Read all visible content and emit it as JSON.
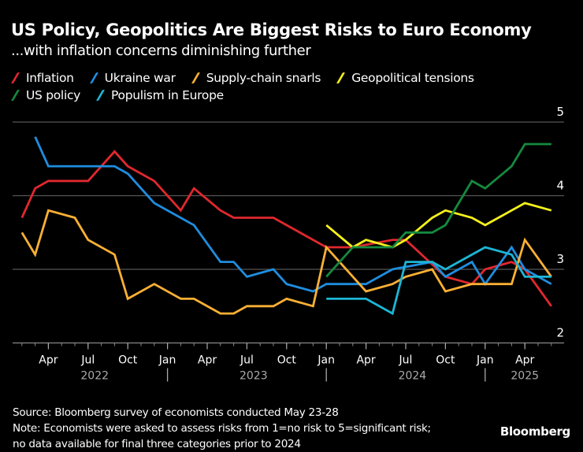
{
  "header": {
    "title": "US Policy, Geopolitics Are Biggest Risks to Euro Economy",
    "subtitle": "...with inflation concerns diminishing further"
  },
  "legend": [
    {
      "label": "Inflation",
      "color": "#e0282e"
    },
    {
      "label": "Ukraine war",
      "color": "#1f8ddf"
    },
    {
      "label": "Supply-chain snarls",
      "color": "#fbb034"
    },
    {
      "label": "Geopolitical tensions",
      "color": "#f5f11b"
    },
    {
      "label": "US policy",
      "color": "#158a3e"
    },
    {
      "label": "Populism in Europe",
      "color": "#1cb6d5"
    }
  ],
  "footer": {
    "source": "Source: Bloomberg survey of economists conducted May 23-28",
    "note_line1": "Note: Economists were asked to assess risks from 1=no risk to 5=significant risk;",
    "note_line2": "no data available for final three categories prior to 2024",
    "brand": "Bloomberg"
  },
  "chart_data": {
    "type": "line",
    "title": "US Policy, Geopolitics Are Biggest Risks to Euro Economy",
    "subtitle": "...with inflation concerns diminishing further",
    "xlabel": "",
    "ylabel": "",
    "x_unit": "months since Jan 2022",
    "xlim": [
      0,
      42
    ],
    "ylim": [
      2,
      5
    ],
    "yticks": [
      2,
      3,
      4,
      5
    ],
    "grid": true,
    "y_axis_side": "right",
    "legend_position": "top-left",
    "x_ticks": [
      {
        "m": 3,
        "label": "Apr"
      },
      {
        "m": 6,
        "label": "Jul"
      },
      {
        "m": 9,
        "label": "Oct"
      },
      {
        "m": 12,
        "label": "Jan"
      },
      {
        "m": 15,
        "label": "Apr"
      },
      {
        "m": 18,
        "label": "Jul"
      },
      {
        "m": 21,
        "label": "Oct"
      },
      {
        "m": 24,
        "label": "Jan"
      },
      {
        "m": 27,
        "label": "Apr"
      },
      {
        "m": 30,
        "label": "Jul"
      },
      {
        "m": 33,
        "label": "Oct"
      },
      {
        "m": 36,
        "label": "Jan"
      },
      {
        "m": 39,
        "label": "Apr"
      }
    ],
    "year_labels": [
      {
        "m": 6.5,
        "label": "2022"
      },
      {
        "m": 18.5,
        "label": "2023"
      },
      {
        "m": 30.5,
        "label": "2024"
      },
      {
        "m": 39,
        "label": "2025"
      }
    ],
    "year_separators": [
      12,
      24,
      36
    ],
    "series": [
      {
        "name": "Inflation",
        "color": "#e0282e",
        "m": [
          1,
          2,
          3,
          6,
          8,
          9,
          11,
          13,
          14,
          16,
          17,
          20,
          24,
          26,
          29,
          30,
          33,
          35,
          36,
          38,
          39,
          41
        ],
        "values": [
          3.7,
          4.1,
          4.2,
          4.2,
          4.6,
          4.4,
          4.2,
          3.8,
          4.1,
          3.8,
          3.7,
          3.7,
          3.3,
          3.3,
          3.4,
          3.4,
          2.9,
          2.8,
          3.0,
          3.1,
          3.0,
          2.5
        ]
      },
      {
        "name": "Ukraine war",
        "color": "#1f8ddf",
        "m": [
          2,
          3,
          8,
          9,
          11,
          14,
          16,
          17,
          18,
          20,
          21,
          23,
          24,
          27,
          29,
          32,
          33,
          35,
          36,
          38,
          39,
          41
        ],
        "values": [
          4.8,
          4.4,
          4.4,
          4.3,
          3.9,
          3.6,
          3.1,
          3.1,
          2.9,
          3.0,
          2.8,
          2.7,
          2.8,
          2.8,
          3.0,
          3.1,
          2.9,
          3.1,
          2.8,
          3.3,
          3.0,
          2.8
        ]
      },
      {
        "name": "Supply-chain snarls",
        "color": "#fbb034",
        "m": [
          1,
          2,
          3,
          5,
          6,
          8,
          9,
          11,
          13,
          14,
          16,
          17,
          18,
          20,
          21,
          23,
          24,
          27,
          29,
          30,
          32,
          33,
          35,
          38,
          39,
          41
        ],
        "values": [
          3.5,
          3.2,
          3.8,
          3.7,
          3.4,
          3.2,
          2.6,
          2.8,
          2.6,
          2.6,
          2.4,
          2.4,
          2.5,
          2.5,
          2.6,
          2.5,
          3.3,
          2.7,
          2.8,
          2.9,
          3.0,
          2.7,
          2.8,
          2.8,
          3.4,
          2.9
        ]
      },
      {
        "name": "Geopolitical tensions",
        "color": "#f5f11b",
        "m": [
          24,
          26,
          27,
          29,
          30,
          32,
          33,
          35,
          36,
          38,
          39,
          41
        ],
        "values": [
          3.6,
          3.3,
          3.4,
          3.3,
          3.4,
          3.7,
          3.8,
          3.7,
          3.6,
          3.8,
          3.9,
          3.8
        ]
      },
      {
        "name": "US policy",
        "color": "#158a3e",
        "m": [
          24,
          26,
          27,
          29,
          30,
          32,
          33,
          35,
          36,
          38,
          39,
          41
        ],
        "values": [
          2.9,
          3.3,
          3.3,
          3.3,
          3.5,
          3.5,
          3.6,
          4.2,
          4.1,
          4.4,
          4.7,
          4.7
        ]
      },
      {
        "name": "Populism in Europe",
        "color": "#1cb6d5",
        "m": [
          24,
          27,
          29,
          30,
          32,
          33,
          36,
          38,
          39,
          41
        ],
        "values": [
          2.6,
          2.6,
          2.4,
          3.1,
          3.1,
          3.0,
          3.3,
          3.2,
          2.9,
          2.9
        ]
      }
    ]
  }
}
